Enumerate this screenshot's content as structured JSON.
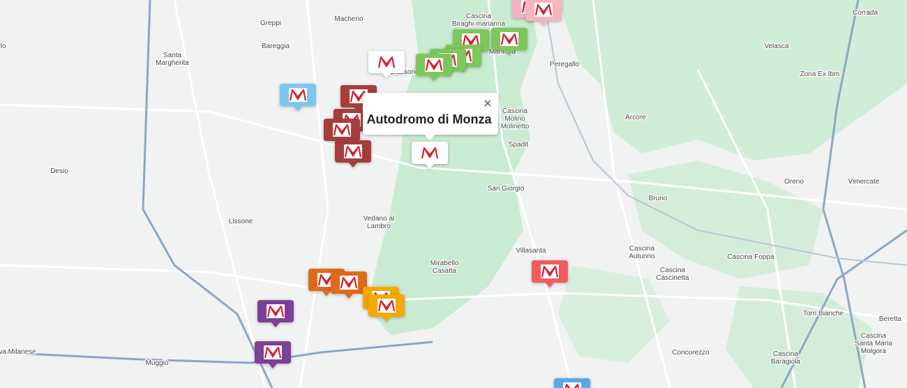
{
  "popup": {
    "title": "Autodromo di Monza"
  },
  "places": [
    [
      "rlo"
    ],
    [
      "Greppi"
    ],
    [
      "Macherio"
    ],
    [
      "Cascina",
      "Biraghi-marianna"
    ],
    [
      "Corrada"
    ],
    [
      "Santa",
      "Margherita"
    ],
    [
      "Bareggia"
    ],
    [
      "Mantova"
    ],
    [
      "Peregallo"
    ],
    [
      "Velasca"
    ],
    [
      "Zona Ex Ibm"
    ],
    [
      "Biassono"
    ],
    [
      "Cascina",
      "Molino",
      "Molinetto"
    ],
    [
      "Arcore"
    ],
    [
      "Spadit"
    ],
    [
      "Desio"
    ],
    [
      "San Giorgio"
    ],
    [
      "Bruno"
    ],
    [
      "Oreno"
    ],
    [
      "Vimercate"
    ],
    [
      "Lissone"
    ],
    [
      "Vedano al",
      "Lambro"
    ],
    [
      "Villasanta"
    ],
    [
      "Cascina",
      "Autunno"
    ],
    [
      "Cascina Foppa"
    ],
    [
      "Mirabello",
      "Casatta"
    ],
    [
      "Cascina",
      "Cascinetta"
    ],
    [
      "Torri Bianche"
    ],
    [
      "Beretta"
    ],
    [
      "Cascina",
      "Santa Maria",
      "Molgora"
    ],
    [
      "va Milanese"
    ],
    [
      "Muggiò"
    ],
    [
      "Concorezzo"
    ],
    [
      "Cascina",
      "Baragiola"
    ]
  ]
}
